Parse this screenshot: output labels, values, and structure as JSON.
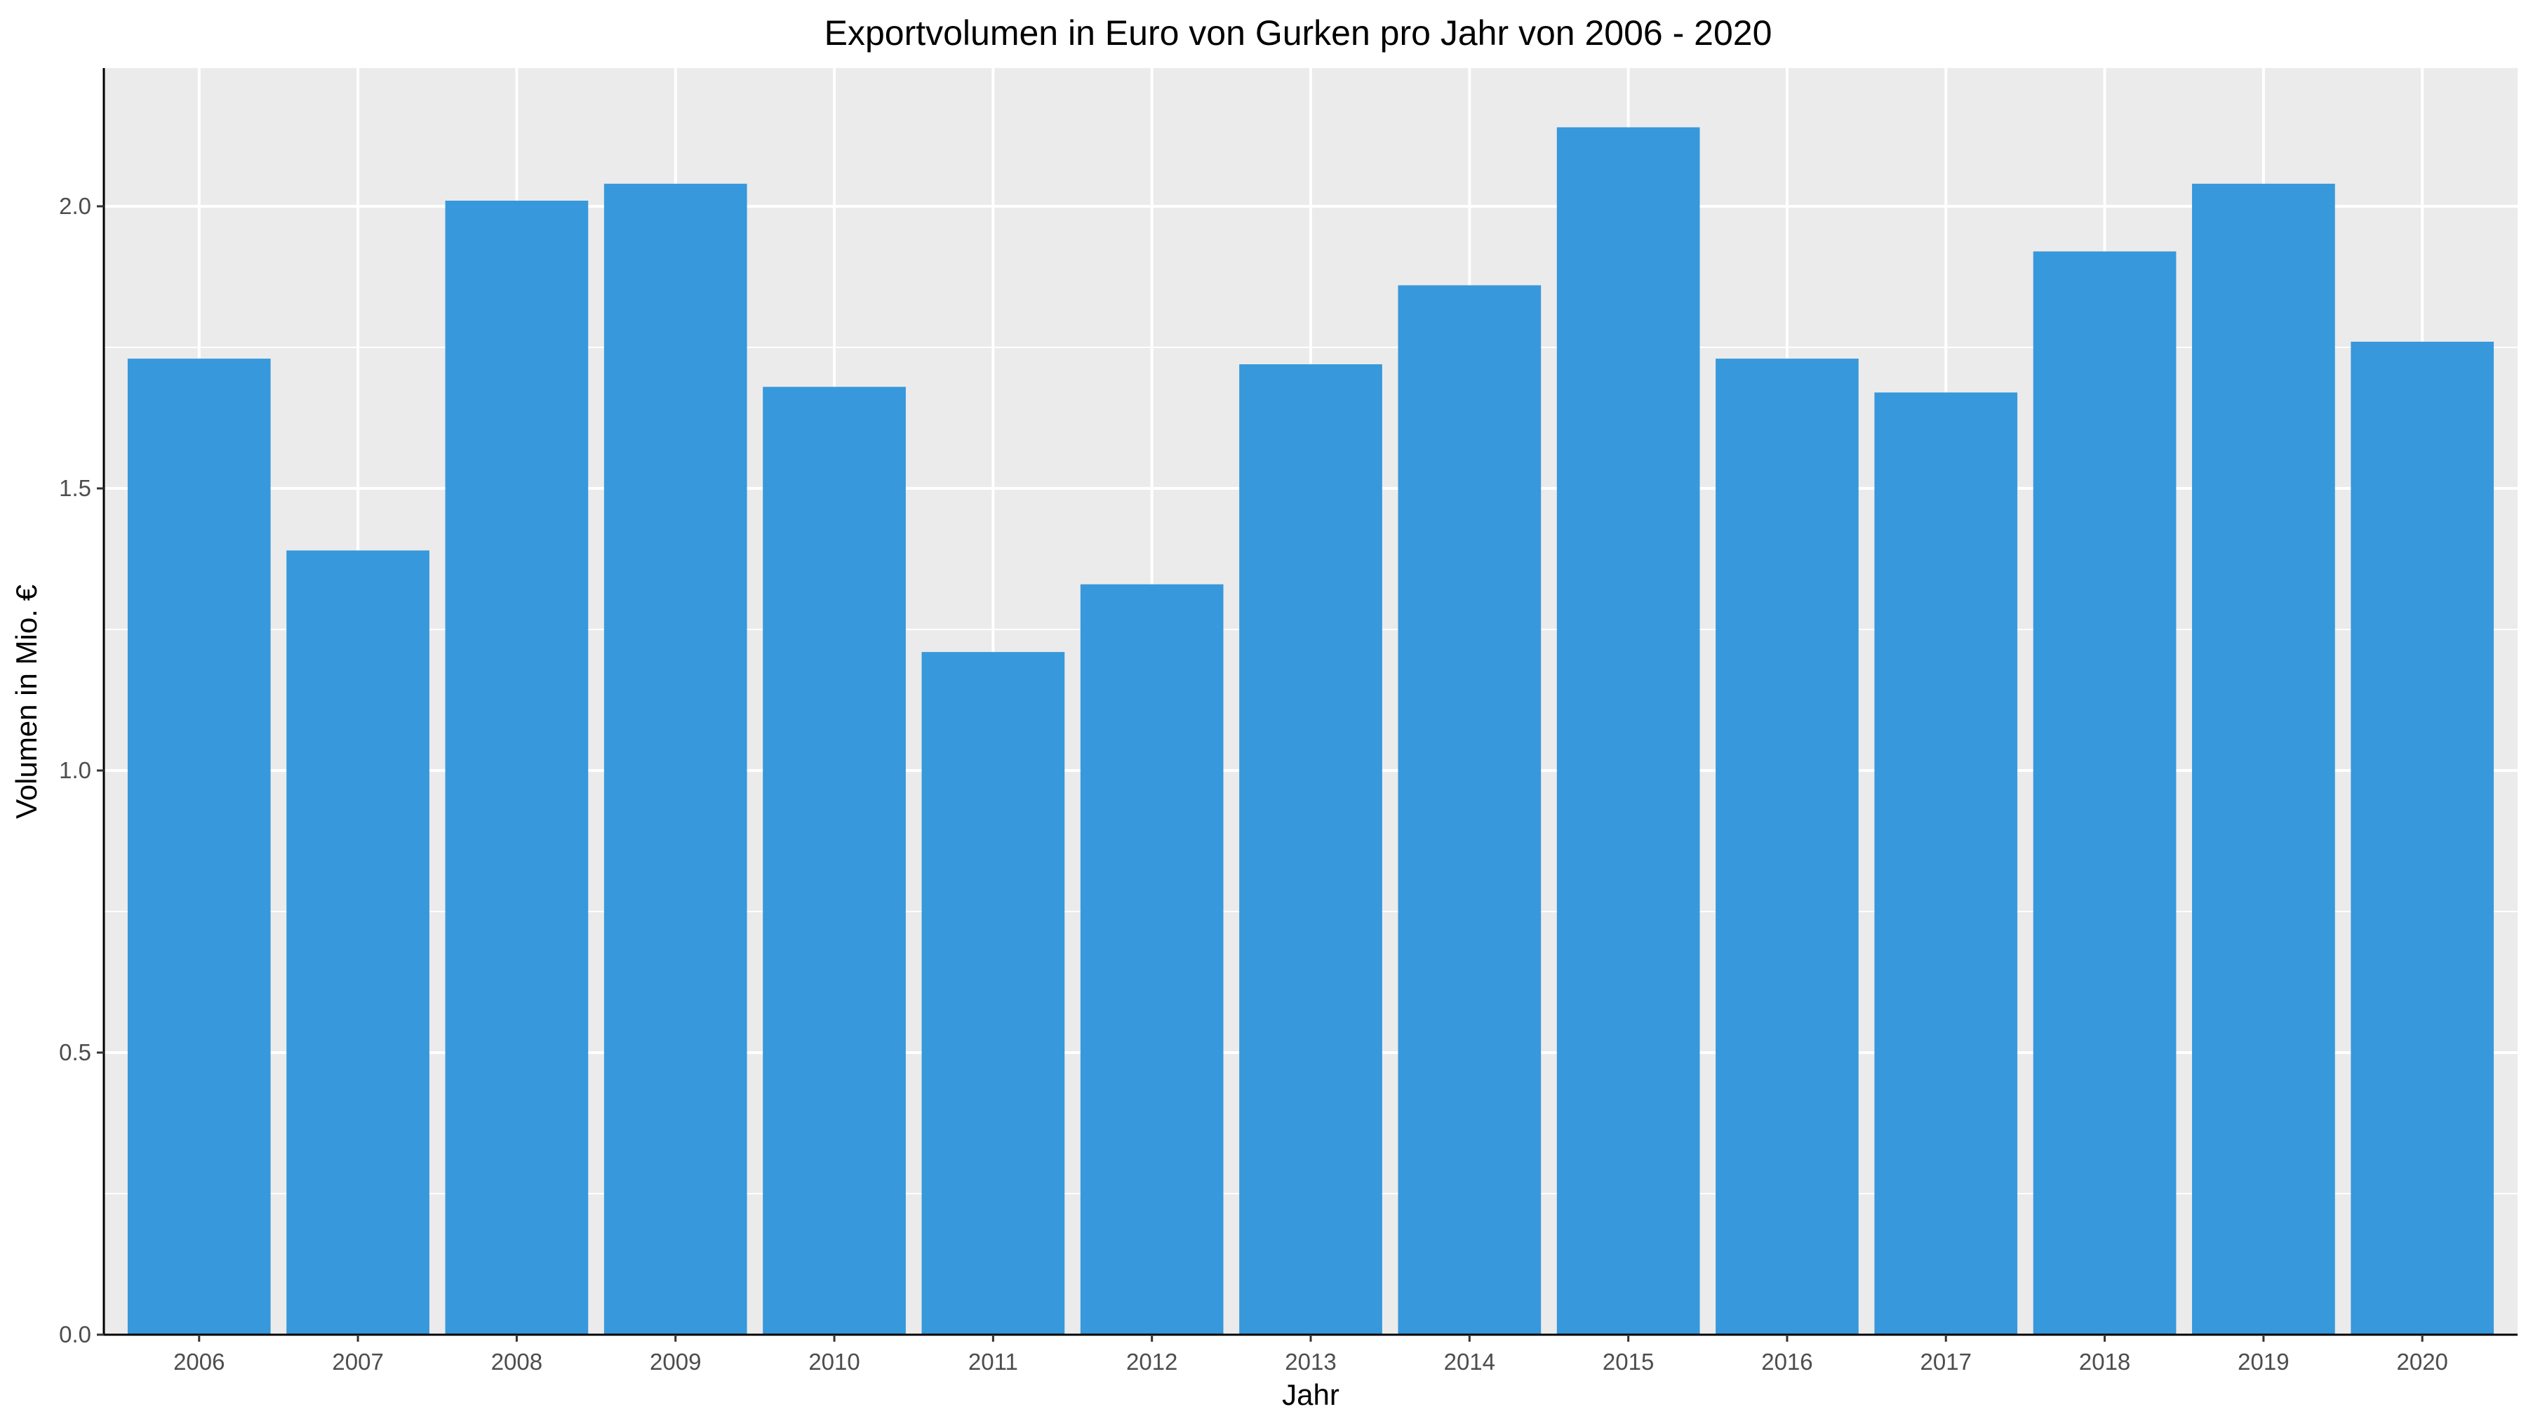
{
  "chart_data": {
    "type": "bar",
    "title": "Exportvolumen in Euro von Gurken pro Jahr von 2006 - 2020",
    "xlabel": "Jahr",
    "ylabel": "Volumen in Mio. €",
    "categories": [
      "2006",
      "2007",
      "2008",
      "2009",
      "2010",
      "2011",
      "2012",
      "2013",
      "2014",
      "2015",
      "2016",
      "2017",
      "2018",
      "2019",
      "2020"
    ],
    "values": [
      1.73,
      1.39,
      2.01,
      2.04,
      1.68,
      1.21,
      1.33,
      1.72,
      1.86,
      2.14,
      1.73,
      1.67,
      1.92,
      2.04,
      1.76
    ],
    "yticks": [
      "0.0",
      "0.5",
      "1.0",
      "1.5",
      "2.0"
    ],
    "ylim": [
      0,
      2.245
    ],
    "grid": true,
    "legend": "none",
    "colors": {
      "bar": "#3798db",
      "panel": "#ebebeb",
      "grid": "#ffffff"
    }
  }
}
